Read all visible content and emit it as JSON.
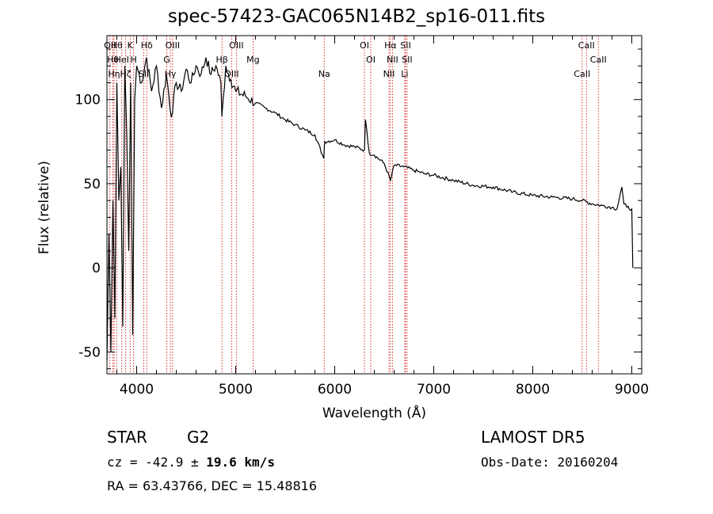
{
  "chart_data": {
    "type": "line",
    "title": "spec-57423-GAC065N14B2_sp16-011.fits",
    "xlabel": "Wavelength (Å)",
    "ylabel": "Flux (relative)",
    "xlim": [
      3700,
      9100
    ],
    "ylim": [
      -63,
      138
    ],
    "xticks": [
      4000,
      5000,
      6000,
      7000,
      8000,
      9000
    ],
    "yticks": [
      -50,
      0,
      50,
      100
    ],
    "grid": false,
    "series": [
      {
        "x": [
          3700,
          3720,
          3740,
          3760,
          3780,
          3800,
          3820,
          3840,
          3860,
          3880,
          3900,
          3920,
          3940,
          3960,
          3980,
          4000,
          4050,
          4100,
          4150,
          4200,
          4250,
          4300,
          4350,
          4400,
          4450,
          4500,
          4550,
          4600,
          4650,
          4700,
          4750,
          4800,
          4850,
          4861,
          4900,
          4950,
          5000,
          5100,
          5200,
          5300,
          5400,
          5500,
          5600,
          5700,
          5800,
          5890,
          5895,
          5900,
          6000,
          6100,
          6200,
          6300,
          6310,
          6350,
          6400,
          6500,
          6563,
          6600,
          6700,
          6800,
          6900,
          7000,
          7200,
          7400,
          7600,
          7800,
          8000,
          8200,
          8400,
          8500,
          8600,
          8700,
          8800,
          8850,
          8900,
          8920,
          8950,
          9000,
          9010
        ],
        "y": [
          -55,
          20,
          -50,
          40,
          -30,
          110,
          40,
          60,
          -35,
          120,
          80,
          10,
          110,
          -40,
          100,
          120,
          110,
          125,
          105,
          120,
          95,
          115,
          90,
          110,
          105,
          118,
          110,
          120,
          115,
          125,
          115,
          120,
          110,
          90,
          120,
          112,
          105,
          102,
          98,
          95,
          92,
          88,
          85,
          82,
          79,
          65,
          72,
          75,
          76,
          73,
          72,
          70,
          88,
          68,
          67,
          62,
          52,
          61,
          60,
          58,
          56,
          55,
          52,
          49,
          48,
          45,
          43,
          42,
          41,
          40,
          38,
          37,
          36,
          35,
          48,
          38,
          36,
          35,
          0
        ]
      }
    ],
    "lines": [
      {
        "w": 3730,
        "label": "OII"
      },
      {
        "w": 3760,
        "label": "Hθ"
      },
      {
        "w": 3772,
        "label": "Hη"
      },
      {
        "w": 3798,
        "label": "Hθ"
      },
      {
        "w": 3850,
        "label": "HeI"
      },
      {
        "w": 3889,
        "label": "Hζ"
      },
      {
        "w": 3934,
        "label": "K"
      },
      {
        "w": 3969,
        "label": "H"
      },
      {
        "w": 4072,
        "label": "SII"
      },
      {
        "w": 4102,
        "label": "Hδ"
      },
      {
        "w": 4304,
        "label": "G"
      },
      {
        "w": 4340,
        "label": "Hγ"
      },
      {
        "w": 4363,
        "label": "OIII"
      },
      {
        "w": 4861,
        "label": "Hβ"
      },
      {
        "w": 4959,
        "label": "OIII"
      },
      {
        "w": 5007,
        "label": "OIII"
      },
      {
        "w": 5175,
        "label": "Mg"
      },
      {
        "w": 5894,
        "label": "Na"
      },
      {
        "w": 6300,
        "label": "OI"
      },
      {
        "w": 6364,
        "label": "OI"
      },
      {
        "w": 6548,
        "label": "NII"
      },
      {
        "w": 6563,
        "label": "Hα"
      },
      {
        "w": 6583,
        "label": "NII"
      },
      {
        "w": 6707,
        "label": "Li"
      },
      {
        "w": 6716,
        "label": "SII"
      },
      {
        "w": 6731,
        "label": "SII"
      },
      {
        "w": 8498,
        "label": "CaII"
      },
      {
        "w": 8542,
        "label": "CaII"
      },
      {
        "w": 8662,
        "label": "CaII"
      }
    ],
    "line_color": "#cc0000"
  },
  "footer": {
    "class_label": "STAR",
    "subclass": "G2",
    "survey": "LAMOST DR5",
    "cz_label": "cz = ",
    "cz_value": "-42.9",
    "cz_pm": " ± ",
    "cz_err": "19.6",
    "cz_unit": " km/s",
    "obs_date": "Obs-Date: 20160204",
    "coords": "RA =  63.43766, DEC =  15.48816"
  }
}
